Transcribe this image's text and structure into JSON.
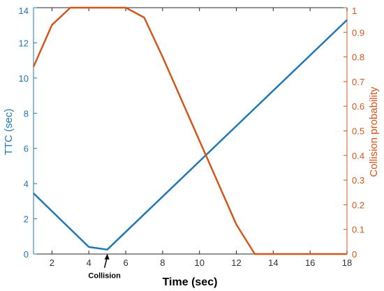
{
  "chart_data": {
    "type": "line",
    "title": "",
    "xlabel": "Time (sec)",
    "ylabel": "TTC (sec)",
    "y2label": "Collision probability",
    "xlim": [
      1,
      18
    ],
    "ylim": [
      0,
      14
    ],
    "y2lim": [
      0,
      1
    ],
    "x_ticks": [
      "2",
      "4",
      "6",
      "8",
      "10",
      "12",
      "14",
      "16",
      "18"
    ],
    "x_tick_values": [
      2,
      4,
      6,
      8,
      10,
      12,
      14,
      16,
      18
    ],
    "y_ticks": [
      "0",
      "2",
      "4",
      "6",
      "8",
      "10",
      "12",
      "14"
    ],
    "y_tick_values": [
      0,
      2,
      4,
      6,
      8,
      10,
      12,
      14
    ],
    "y2_ticks": [
      "0",
      "0.1",
      "0.2",
      "0.3",
      "0.4",
      "0.5",
      "0.6",
      "0.7",
      "0.8",
      "0.9",
      "1"
    ],
    "y2_tick_values": [
      0,
      0.1,
      0.2,
      0.3,
      0.4,
      0.5,
      0.6,
      0.7,
      0.8,
      0.9,
      1
    ],
    "grid": false,
    "series": [
      {
        "axis": "left",
        "color": "#1f77b4",
        "x": [
          1,
          4,
          5,
          18
        ],
        "y": [
          3.45,
          0.4,
          0.25,
          13.3
        ]
      },
      {
        "axis": "right",
        "color": "#d2571d",
        "x": [
          1,
          2,
          3,
          4,
          5,
          6,
          7,
          8,
          9,
          10,
          11,
          12,
          13,
          14,
          15,
          16,
          17,
          18
        ],
        "y": [
          0.76,
          0.93,
          1.0,
          1.0,
          1.0,
          1.0,
          0.96,
          0.8,
          0.63,
          0.46,
          0.29,
          0.12,
          0.0,
          0.0,
          0.0,
          0.0,
          0.0,
          0.0
        ]
      }
    ],
    "annotations": [
      {
        "text": "Collision",
        "x": 5,
        "y": 0.25,
        "arrow": true
      }
    ]
  }
}
